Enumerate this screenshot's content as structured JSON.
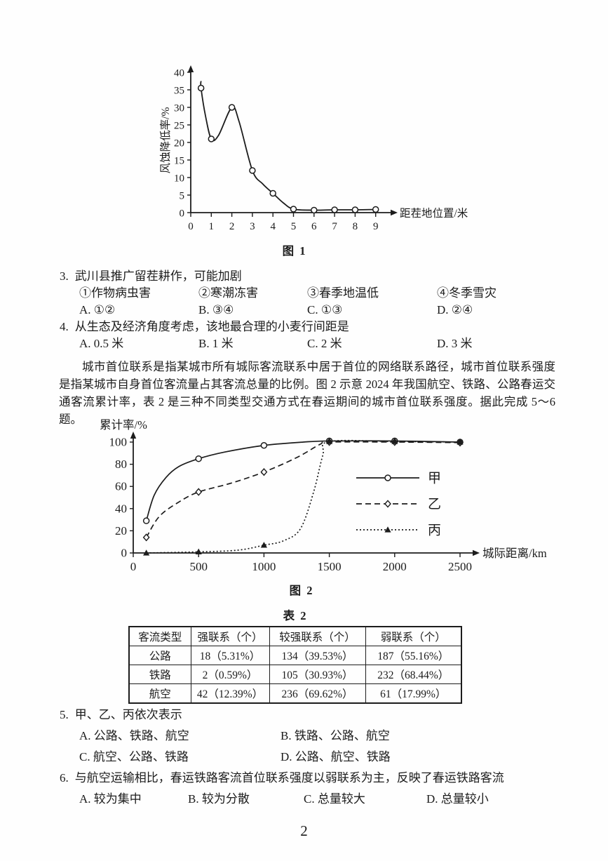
{
  "page": {
    "number": "2"
  },
  "intro": {
    "text": "城市首位联系是指某城市所有城际客流联系中居于首位的网络联系路径，城市首位联系强度是指某城市自身首位客流量占其客流总量的比例。图 2 示意 2024 年我国航空、铁路、公路春运交通客流累计率，表 2 是三种不同类型交通方式在春运期间的城市首位联系强度。据此完成 5～6 题。"
  },
  "questions": [
    {
      "number": "3.",
      "stem": "武川县推广留茬耕作，可能加剧",
      "subitems": [
        "①作物病虫害",
        "②寒潮冻害",
        "③春季地温低",
        "④冬季雪灾"
      ],
      "options": [
        "A. ①②",
        "B. ③④",
        "C. ①③",
        "D. ②④"
      ]
    },
    {
      "number": "4.",
      "stem": "从生态及经济角度考虑，该地最合理的小麦行间距是",
      "options": [
        "A. 0.5 米",
        "B. 1 米",
        "C. 2 米",
        "D. 3 米"
      ]
    },
    {
      "number": "5.",
      "stem": "甲、乙、丙依次表示",
      "options": [
        "A. 公路、铁路、航空",
        "B. 铁路、公路、航空",
        "C. 航空、公路、铁路",
        "D. 公路、航空、铁路"
      ]
    },
    {
      "number": "6.",
      "stem": "与航空运输相比，春运铁路客流首位联系强度以弱联系为主，反映了春运铁路客流",
      "options": [
        "A. 较为集中",
        "B. 较为分散",
        "C. 总量较大",
        "D. 总量较小"
      ]
    }
  ],
  "table2": {
    "caption": "表 2",
    "headers": [
      "客流类型",
      "强联系（个）",
      "较强联系（个）",
      "弱联系（个）"
    ],
    "rows": [
      [
        "公路",
        "18（5.31%）",
        "134（39.53%）",
        "187（55.16%）"
      ],
      [
        "铁路",
        "2（0.59%）",
        "105（30.93%）",
        "232（68.44%）"
      ],
      [
        "航空",
        "42（12.39%）",
        "236（69.62%）",
        "61（17.99%）"
      ]
    ]
  },
  "chart_data": [
    {
      "type": "line",
      "title": "图 1",
      "xlabel": "距茬地位置/米",
      "ylabel": "风蚀降低率/%",
      "xlim": [
        0,
        9.6
      ],
      "ylim": [
        0,
        42
      ],
      "xticks": [
        0,
        1,
        2,
        3,
        4,
        5,
        6,
        7,
        8,
        9
      ],
      "yticks": [
        0,
        5,
        10,
        15,
        20,
        25,
        30,
        35,
        40
      ],
      "grid": false,
      "legend_position": "none",
      "series": [
        {
          "name": "风蚀降低率",
          "marker": "circle-open",
          "dash": "",
          "points": [
            [
              0.5,
              35.5
            ],
            [
              1,
              21
            ],
            [
              2,
              30
            ],
            [
              3,
              12
            ],
            [
              4,
              5.5
            ],
            [
              5,
              1
            ],
            [
              6,
              0.7
            ],
            [
              7,
              0.8
            ],
            [
              8,
              0.8
            ],
            [
              9,
              0.9
            ]
          ],
          "path": [
            [
              0.5,
              37.5
            ],
            [
              0.5,
              35.5
            ],
            [
              0.72,
              27.5
            ],
            [
              1,
              21
            ],
            [
              1.35,
              22
            ],
            [
              2,
              30
            ],
            [
              2.35,
              26
            ],
            [
              3,
              12
            ],
            [
              3.5,
              8.2
            ],
            [
              4,
              5.5
            ],
            [
              4.5,
              2.8
            ],
            [
              5,
              1
            ],
            [
              6,
              0.7
            ],
            [
              7,
              0.8
            ],
            [
              8,
              0.8
            ],
            [
              9,
              0.9
            ]
          ]
        }
      ]
    },
    {
      "type": "line",
      "title": "图 2",
      "xlabel": "城际距离/km",
      "ylabel": "累计率/%",
      "xlim": [
        0,
        2600
      ],
      "ylim": [
        0,
        105
      ],
      "xticks": [
        0,
        500,
        1000,
        1500,
        2000,
        2500
      ],
      "yticks": [
        0,
        20,
        40,
        60,
        80,
        100
      ],
      "grid": false,
      "legend_position": "right-middle",
      "series": [
        {
          "name": "甲",
          "marker": "circle-open",
          "dash": "",
          "points": [
            [
              100,
              29
            ],
            [
              500,
              85
            ],
            [
              1000,
              97
            ],
            [
              1500,
              101
            ],
            [
              2000,
              101
            ],
            [
              2500,
              100
            ]
          ],
          "path": [
            [
              100,
              29
            ],
            [
              160,
              52
            ],
            [
              250,
              68
            ],
            [
              350,
              78
            ],
            [
              500,
              85
            ],
            [
              700,
              91
            ],
            [
              1000,
              97
            ],
            [
              1300,
              100
            ],
            [
              1500,
              101
            ],
            [
              2000,
              101
            ],
            [
              2500,
              100
            ]
          ]
        },
        {
          "name": "乙",
          "marker": "diamond-open",
          "dash": "8,5",
          "points": [
            [
              100,
              14
            ],
            [
              500,
              55
            ],
            [
              1000,
              73
            ],
            [
              1500,
              100
            ],
            [
              2000,
              100
            ],
            [
              2500,
              99.5
            ]
          ],
          "path": [
            [
              100,
              14
            ],
            [
              200,
              33
            ],
            [
              350,
              46
            ],
            [
              500,
              55
            ],
            [
              750,
              63
            ],
            [
              1000,
              73
            ],
            [
              1250,
              86
            ],
            [
              1430,
              98
            ],
            [
              1500,
              100
            ],
            [
              2000,
              100
            ],
            [
              2500,
              99.5
            ]
          ]
        },
        {
          "name": "丙",
          "marker": "triangle-filled",
          "dash": "2,3",
          "points": [
            [
              100,
              0
            ],
            [
              500,
              1
            ],
            [
              1000,
              7
            ],
            [
              1500,
              100.5
            ],
            [
              2000,
              100.5
            ],
            [
              2500,
              100
            ]
          ],
          "path": [
            [
              100,
              0
            ],
            [
              500,
              1
            ],
            [
              800,
              2.5
            ],
            [
              1000,
              7
            ],
            [
              1150,
              11
            ],
            [
              1280,
              22
            ],
            [
              1380,
              55
            ],
            [
              1450,
              88
            ],
            [
              1500,
              100.5
            ],
            [
              2000,
              100.5
            ],
            [
              2500,
              100
            ]
          ]
        }
      ]
    }
  ]
}
